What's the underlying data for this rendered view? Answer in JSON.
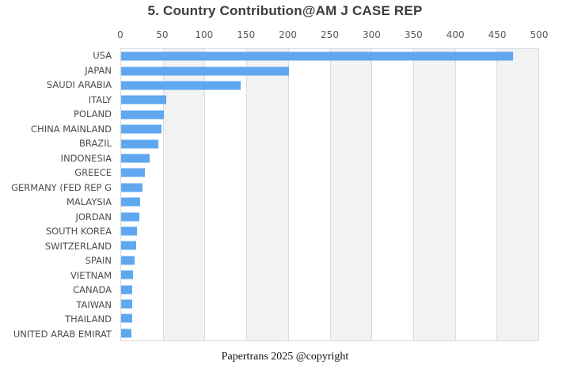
{
  "title": "5. Country Contribution@AM J CASE REP",
  "footer": "Papertrans 2025 @copyright",
  "chart_data": {
    "type": "bar",
    "orientation": "horizontal",
    "title": "5. Country Contribution@AM J CASE REP",
    "xlabel": "",
    "ylabel": "",
    "xlim": [
      0,
      500
    ],
    "xticks": [
      0,
      50,
      100,
      150,
      200,
      250,
      300,
      350,
      400,
      450,
      500
    ],
    "legend": false,
    "grid": "alternating vertical bands with thin gridlines every 50",
    "categories": [
      "USA",
      "JAPAN",
      "SAUDI ARABIA",
      "ITALY",
      "POLAND",
      "CHINA MAINLAND",
      "BRAZIL",
      "INDONESIA",
      "GREECE",
      "GERMANY (FED REP G",
      "MALAYSIA",
      "JORDAN",
      "SOUTH KOREA",
      "SWITZERLAND",
      "SPAIN",
      "VIETNAM",
      "CANADA",
      "TAIWAN",
      "THAILAND",
      "UNITED ARAB EMIRAT"
    ],
    "values": [
      470,
      201,
      143,
      54,
      51,
      48,
      45,
      34,
      28,
      26,
      23,
      22,
      19,
      18,
      16,
      14,
      13,
      13,
      13,
      12
    ],
    "colors": {
      "bar": "#5fa8f0",
      "stripe": "#f2f2f2",
      "gridline": "#dcdcdc",
      "plot_border": "#d9d9d9",
      "title_text": "#3d3d3d",
      "tick_text": "#595959",
      "label_text": "#4d4d4d",
      "footer_text": "#121212",
      "background": "#ffffff"
    }
  }
}
